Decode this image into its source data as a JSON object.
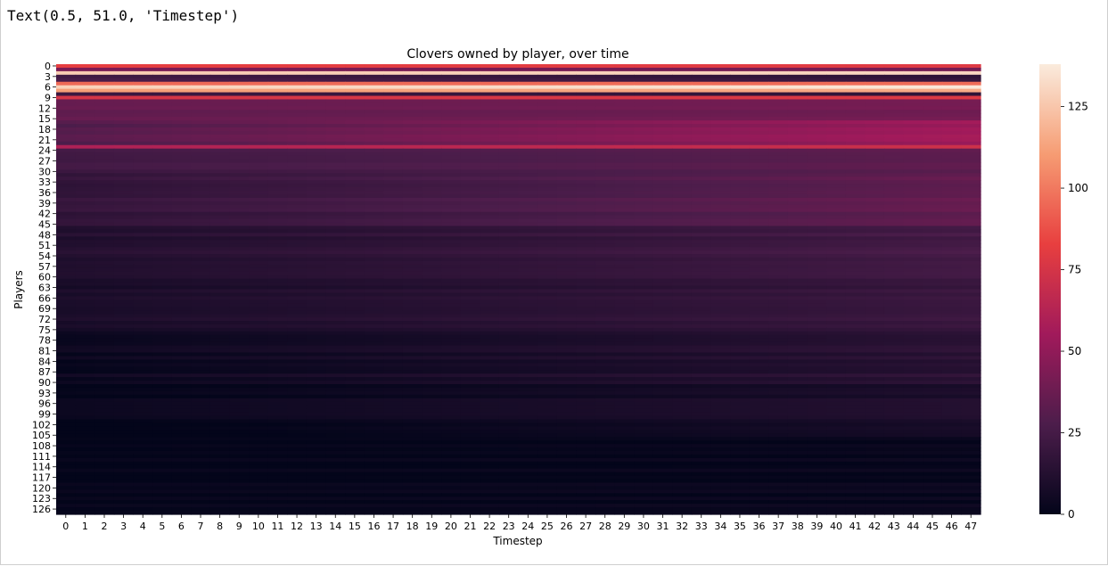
{
  "cell_output": {
    "text": "Text(0.5, 51.0, 'Timestep')"
  },
  "chart_data": {
    "type": "heatmap",
    "title": "Clovers owned by player, over time",
    "xlabel": "Timestep",
    "ylabel": "Players",
    "x_categories": [
      "0",
      "1",
      "2",
      "3",
      "4",
      "5",
      "6",
      "7",
      "8",
      "9",
      "10",
      "11",
      "12",
      "13",
      "14",
      "15",
      "16",
      "17",
      "18",
      "19",
      "20",
      "21",
      "22",
      "23",
      "24",
      "25",
      "26",
      "27",
      "28",
      "29",
      "30",
      "31",
      "32",
      "33",
      "34",
      "35",
      "36",
      "37",
      "38",
      "39",
      "40",
      "41",
      "42",
      "43",
      "44",
      "45",
      "46",
      "47"
    ],
    "y_tick_labels": [
      "0",
      "3",
      "6",
      "9",
      "12",
      "15",
      "18",
      "21",
      "24",
      "27",
      "30",
      "33",
      "36",
      "39",
      "42",
      "45",
      "48",
      "51",
      "54",
      "57",
      "60",
      "63",
      "66",
      "69",
      "72",
      "75",
      "78",
      "81",
      "84",
      "87",
      "90",
      "93",
      "96",
      "99",
      "102",
      "105",
      "108",
      "111",
      "114",
      "117",
      "120",
      "123",
      "126"
    ],
    "n_players": 128,
    "n_timesteps": 48,
    "colorbar": {
      "min": 0,
      "max": 138,
      "ticks": [
        0,
        25,
        50,
        75,
        100,
        125
      ],
      "colormap": "rocket",
      "colormap_stops": [
        "#03051a",
        "#4c1d4b",
        "#a11a5b",
        "#e83f3f",
        "#f69c73",
        "#faebdd"
      ]
    },
    "value_profile": {
      "note": "approximate per-player level at timestep 0 and timestep 47, rows grouped by player index",
      "rows": [
        {
          "players": [
            0,
            0
          ],
          "start": 85,
          "end": 82
        },
        {
          "players": [
            1,
            1
          ],
          "start": 40,
          "end": 38
        },
        {
          "players": [
            2,
            2
          ],
          "start": 128,
          "end": 132
        },
        {
          "players": [
            3,
            4
          ],
          "start": 25,
          "end": 18
        },
        {
          "players": [
            5,
            5
          ],
          "start": 95,
          "end": 96
        },
        {
          "players": [
            6,
            6
          ],
          "start": 130,
          "end": 138
        },
        {
          "players": [
            7,
            7
          ],
          "start": 110,
          "end": 114
        },
        {
          "players": [
            8,
            8
          ],
          "start": 20,
          "end": 15
        },
        {
          "players": [
            9,
            9
          ],
          "start": 75,
          "end": 78
        },
        {
          "players": [
            10,
            15
          ],
          "start": 35,
          "end": 40
        },
        {
          "players": [
            16,
            22
          ],
          "start": 30,
          "end": 55
        },
        {
          "players": [
            23,
            23
          ],
          "start": 60,
          "end": 72
        },
        {
          "players": [
            24,
            30
          ],
          "start": 22,
          "end": 32
        },
        {
          "players": [
            31,
            45
          ],
          "start": 18,
          "end": 35
        },
        {
          "players": [
            46,
            60
          ],
          "start": 12,
          "end": 25
        },
        {
          "players": [
            61,
            75
          ],
          "start": 8,
          "end": 20
        },
        {
          "players": [
            76,
            90
          ],
          "start": 3,
          "end": 15
        },
        {
          "players": [
            91,
            105
          ],
          "start": 1,
          "end": 10
        },
        {
          "players": [
            106,
            127
          ],
          "start": 0,
          "end": 2
        }
      ]
    }
  }
}
